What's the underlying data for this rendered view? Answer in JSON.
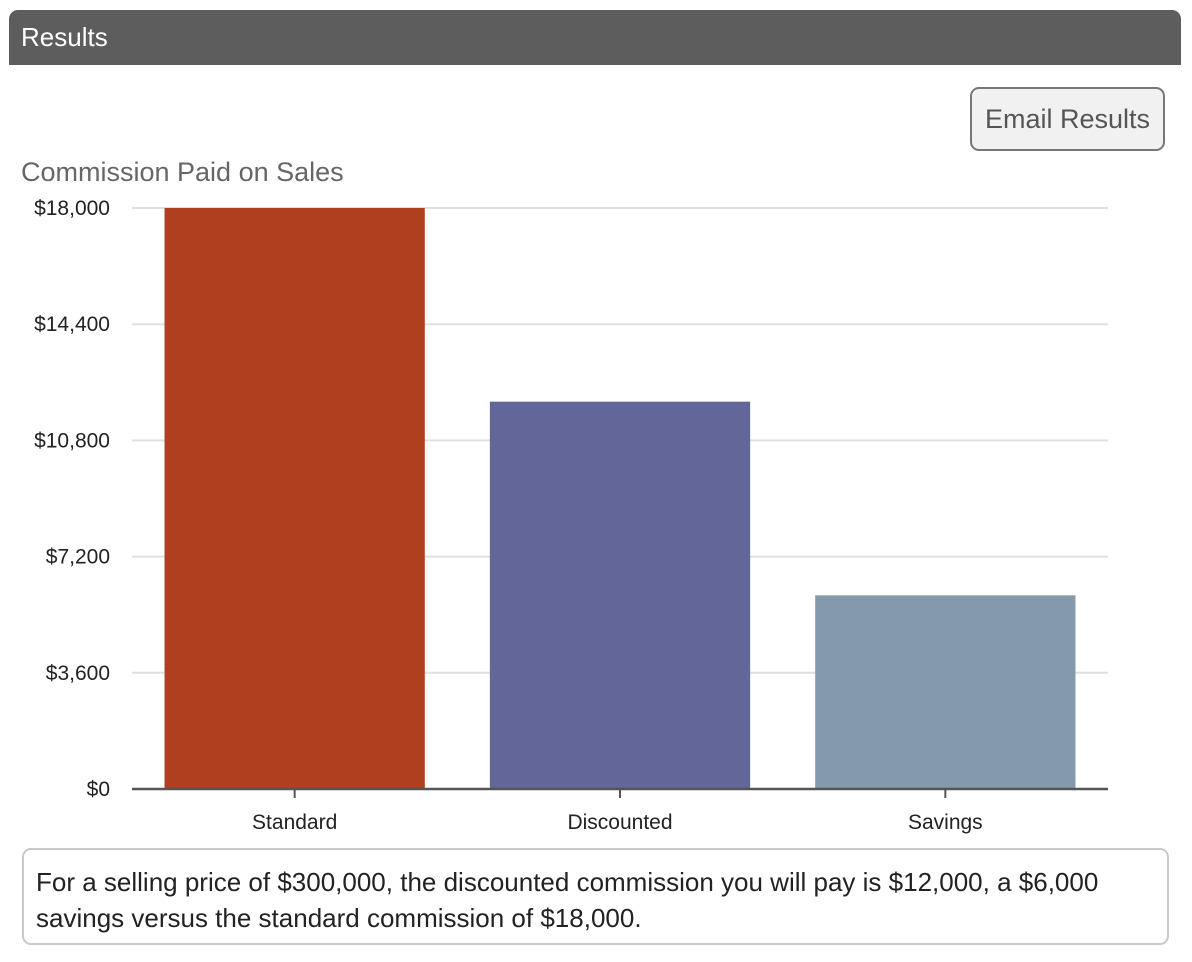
{
  "header": {
    "title": "Results"
  },
  "toolbar": {
    "email_label": "Email Results"
  },
  "summary": {
    "text": "For a selling price of $300,000, the discounted commission you will pay is $12,000, a $6,000 savings versus the standard commission of $18,000."
  },
  "chart_data": {
    "type": "bar",
    "title": "Commission Paid on Sales",
    "xlabel": "",
    "ylabel": "",
    "categories": [
      "Standard",
      "Discounted",
      "Savings"
    ],
    "values": [
      18000,
      12000,
      6000
    ],
    "colors": [
      "#ae401f",
      "#636699",
      "#8499ab"
    ],
    "ylim": [
      0,
      18000
    ],
    "yticks": [
      0,
      3600,
      7200,
      10800,
      14400,
      18000
    ],
    "ytick_labels": [
      "$0",
      "$3,600",
      "$7,200",
      "$10,800",
      "$14,400",
      "$18,000"
    ],
    "grid": true,
    "legend": "none"
  }
}
